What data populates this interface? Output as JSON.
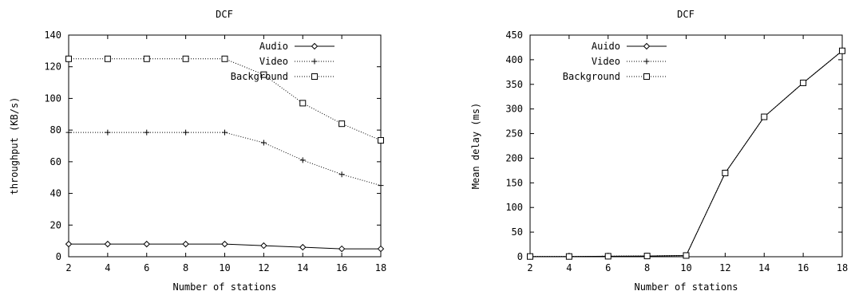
{
  "chart_data": [
    {
      "type": "line",
      "title": "DCF",
      "xlabel": "Number of stations",
      "ylabel": "throughput (KB/s)",
      "x": [
        2,
        4,
        6,
        8,
        10,
        12,
        14,
        16,
        18
      ],
      "xlim": [
        2,
        18
      ],
      "ylim": [
        0,
        140
      ],
      "xticks": [
        2,
        4,
        6,
        8,
        10,
        12,
        14,
        16,
        18
      ],
      "yticks": [
        0,
        20,
        40,
        60,
        80,
        100,
        120,
        140
      ],
      "grid": false,
      "legend": "top-right",
      "series": [
        {
          "name": "Audio",
          "marker": "diamond",
          "values": [
            8,
            8,
            8,
            8,
            8,
            7,
            6,
            5,
            5
          ]
        },
        {
          "name": "Video",
          "marker": "plus",
          "values": [
            78.5,
            78.5,
            78.5,
            78.5,
            78.5,
            72,
            61,
            52,
            45
          ]
        },
        {
          "name": "Background",
          "marker": "square",
          "values": [
            125,
            125,
            125,
            125,
            125,
            115,
            97,
            84,
            73.5
          ]
        }
      ]
    },
    {
      "type": "line",
      "title": "DCF",
      "xlabel": "Number of stations",
      "ylabel": "Mean delay (ms)",
      "x": [
        2,
        4,
        6,
        8,
        10,
        12,
        14,
        16,
        18
      ],
      "xlim": [
        2,
        18
      ],
      "ylim": [
        0,
        450
      ],
      "xticks": [
        2,
        4,
        6,
        8,
        10,
        12,
        14,
        16,
        18
      ],
      "yticks": [
        0,
        50,
        100,
        150,
        200,
        250,
        300,
        350,
        400,
        450
      ],
      "grid": false,
      "legend": "top-left",
      "series": [
        {
          "name": "Auido",
          "marker": "diamond",
          "values": [
            0.5,
            0.5,
            1,
            1.5,
            2.5,
            170,
            284,
            353,
            418
          ]
        },
        {
          "name": "Video",
          "marker": "plus",
          "values": [
            0.5,
            0.5,
            1,
            1.5,
            2.5,
            170,
            284,
            353,
            418
          ]
        },
        {
          "name": "Background",
          "marker": "square",
          "values": [
            0.5,
            0.5,
            1,
            1.5,
            2.5,
            170,
            284,
            353,
            418
          ]
        }
      ]
    }
  ]
}
